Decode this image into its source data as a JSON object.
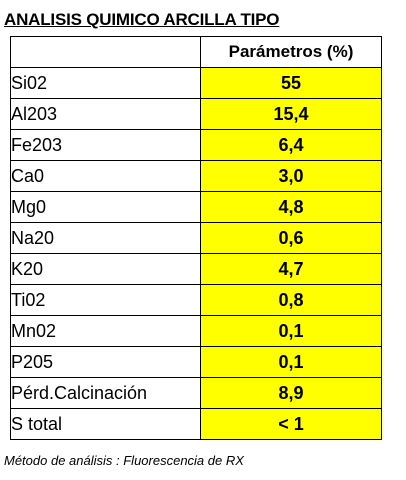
{
  "title": "ANALISIS QUIMICO ARCILLA TIPO",
  "table": {
    "column_header": "Parámetros (%)",
    "value_color": "#ffff00",
    "rows": [
      {
        "name": "Si02",
        "value": "55"
      },
      {
        "name": "Al203",
        "value": "15,4"
      },
      {
        "name": "Fe203",
        "value": "6,4"
      },
      {
        "name": "Ca0",
        "value": "3,0"
      },
      {
        "name": "Mg0",
        "value": "4,8"
      },
      {
        "name": "Na20",
        "value": "0,6"
      },
      {
        "name": "K20",
        "value": "4,7"
      },
      {
        "name": "Ti02",
        "value": "0,8"
      },
      {
        "name": "Mn02",
        "value": "0,1"
      },
      {
        "name": "P205",
        "value": "0,1"
      },
      {
        "name": "Pérd.Calcinación",
        "value": "8,9"
      },
      {
        "name": "S total",
        "value": "< 1"
      }
    ]
  },
  "footnote": "Método de análisis : Fluorescencia de RX"
}
